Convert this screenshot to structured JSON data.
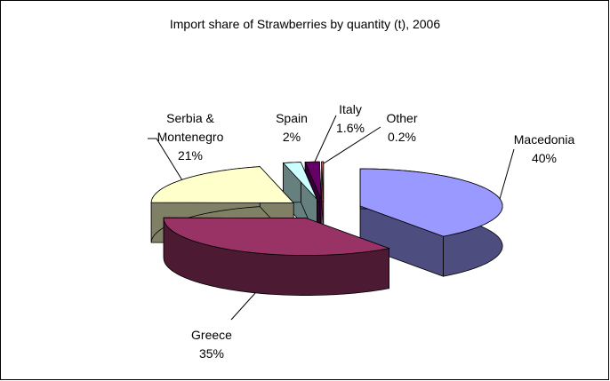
{
  "chart_data": {
    "type": "pie3d",
    "title": "Import share of Strawberries by quantity (t), 2006",
    "categories": [
      "Macedonia",
      "Greece",
      "Serbia & Montenegro",
      "Spain",
      "Italy",
      "Other"
    ],
    "values": [
      40,
      35,
      21,
      2,
      1.6,
      0.2
    ],
    "value_labels": [
      "40%",
      "35%",
      "21%",
      "2%",
      "1.6%",
      "0.2%"
    ],
    "colors": [
      "#9999ff",
      "#993366",
      "#ffffcc",
      "#ccffff",
      "#660066",
      "#ff8080"
    ]
  }
}
